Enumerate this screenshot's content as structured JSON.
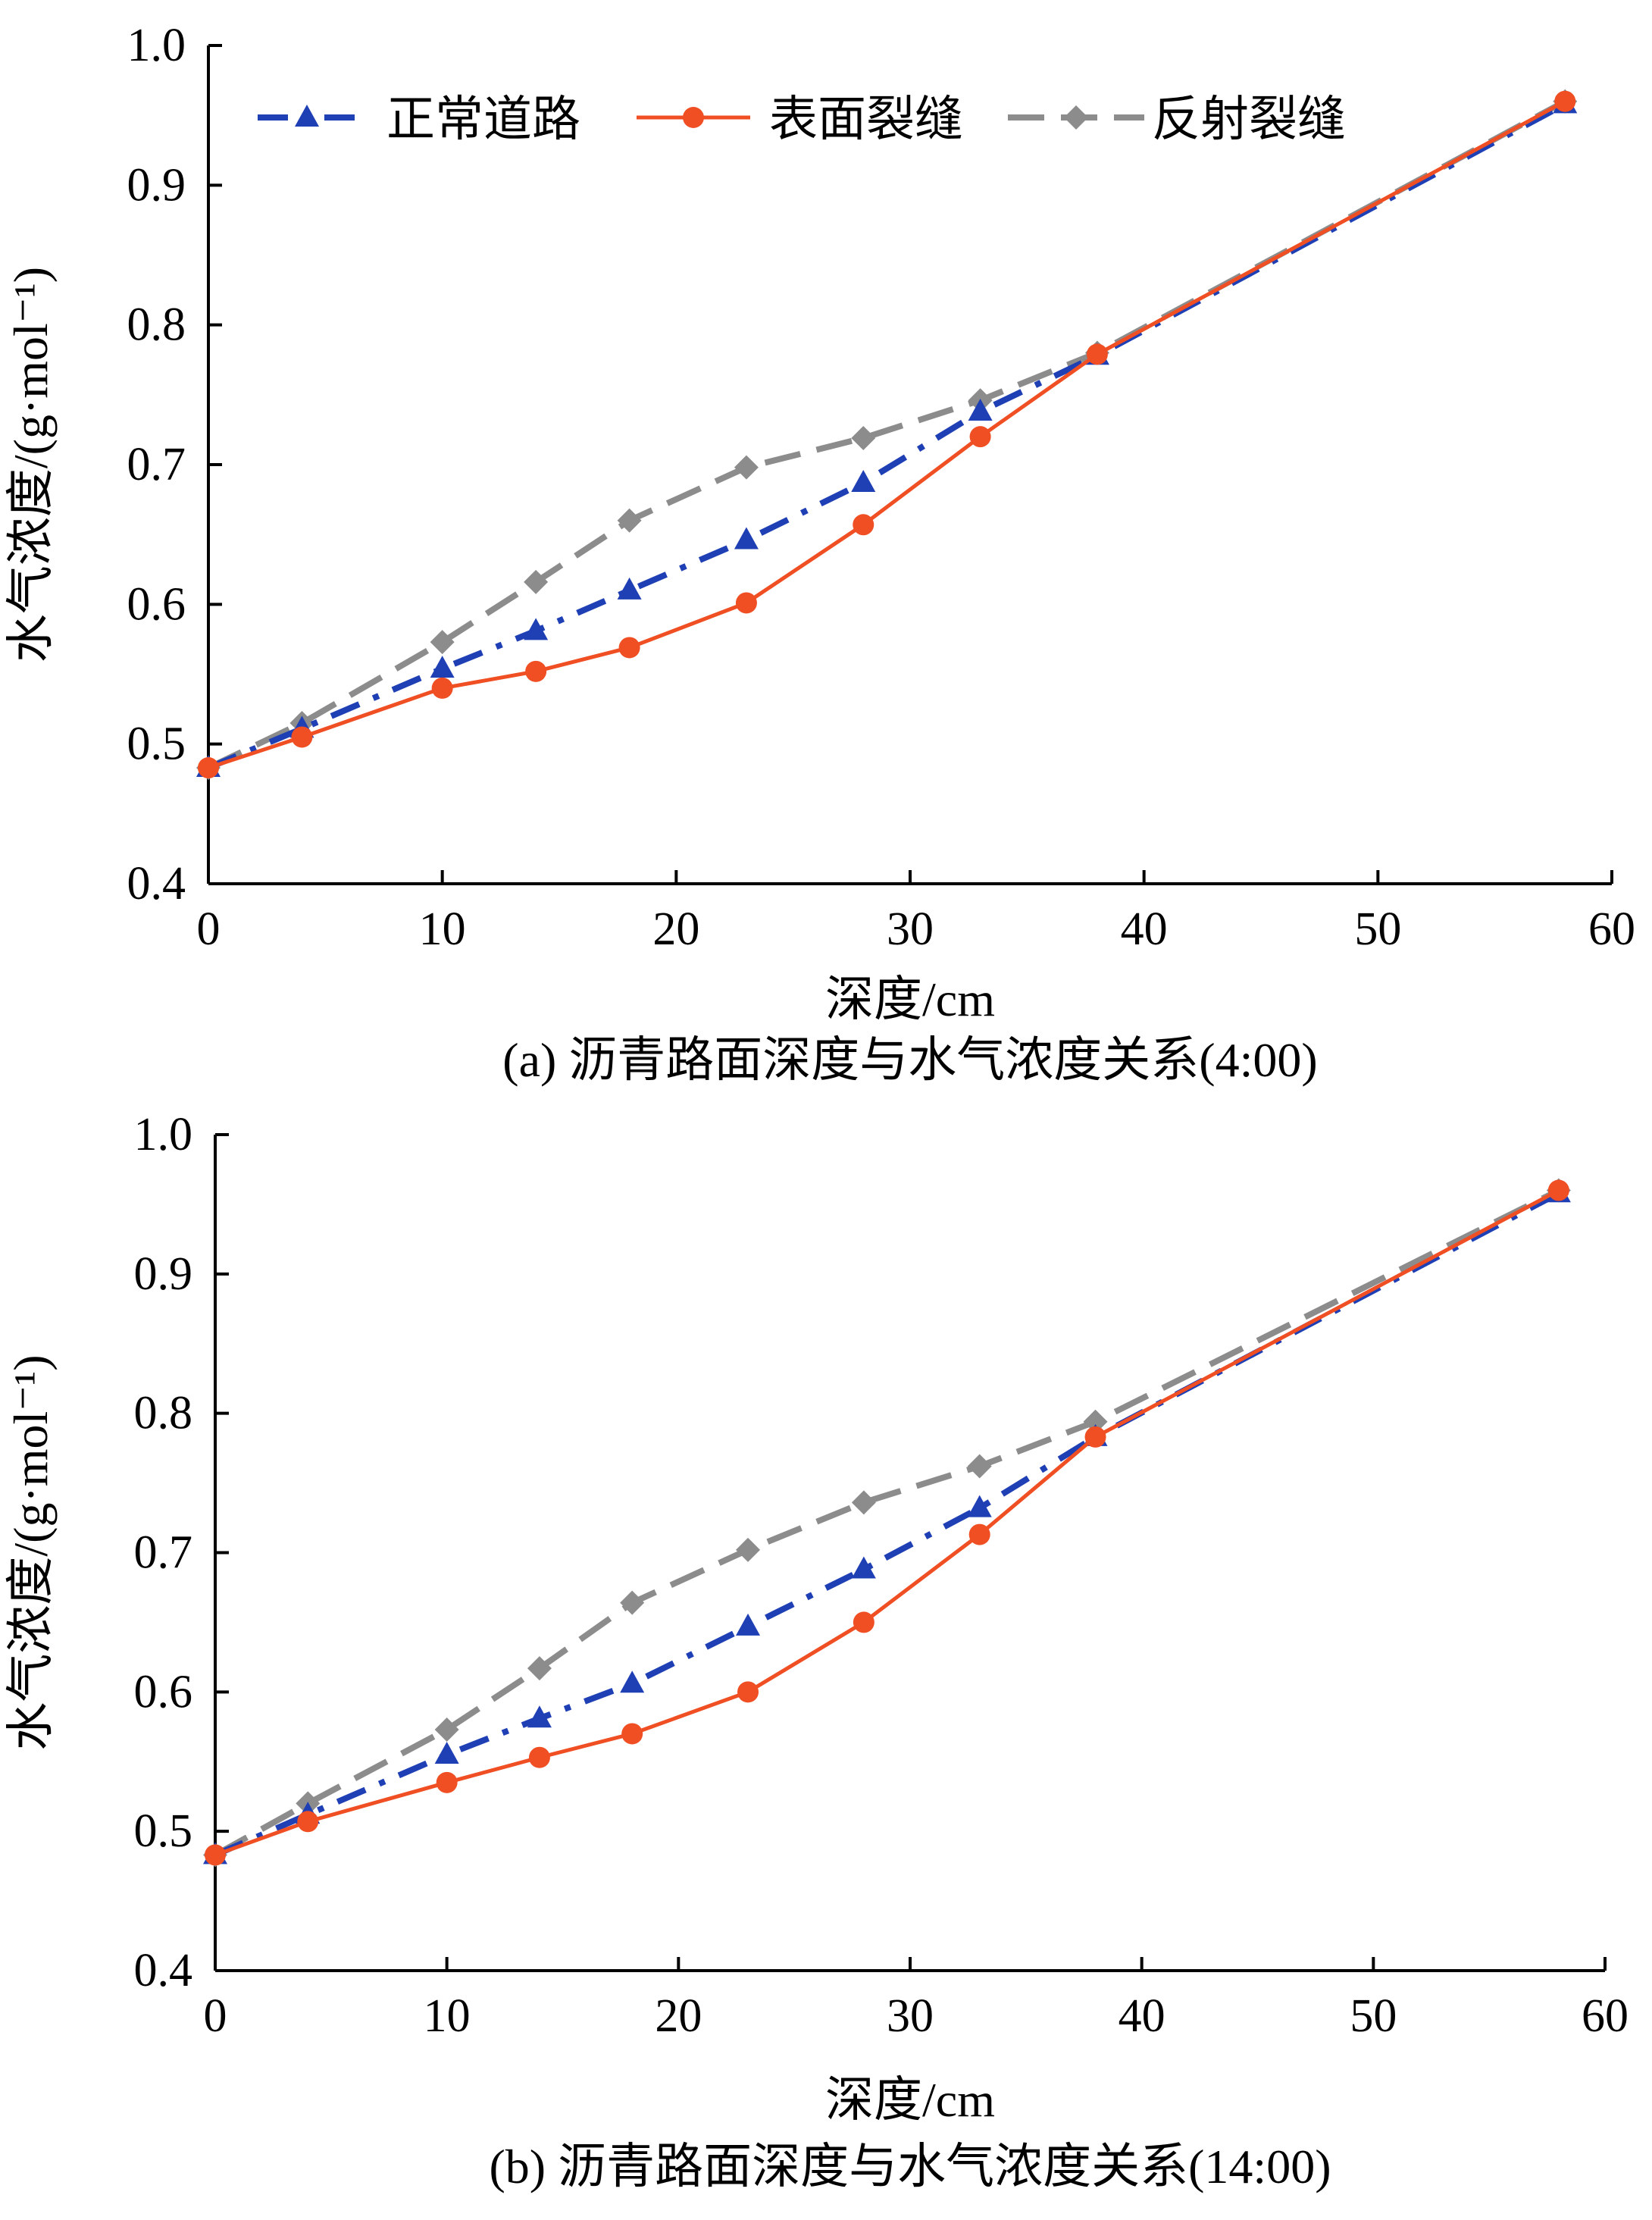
{
  "chart_data": [
    {
      "type": "line",
      "caption": "(a) 沥青路面深度与水气浓度关系(4:00)",
      "xlabel": "深度/cm",
      "ylabel": "水气浓度/(g·mol⁻¹)",
      "xlim": [
        0,
        60
      ],
      "ylim": [
        0.4,
        1.0
      ],
      "xticks": [
        "0",
        "10",
        "20",
        "30",
        "40",
        "50",
        "60"
      ],
      "yticks": [
        "0.4",
        "0.5",
        "0.6",
        "0.7",
        "0.8",
        "0.9",
        "1.0"
      ],
      "grid": false,
      "legend_position": "top-left",
      "x": [
        0,
        4,
        10,
        14,
        18,
        23,
        28,
        33,
        38,
        58
      ],
      "series": [
        {
          "name": "正常道路",
          "color": "#1f3fb4",
          "marker": "triangle",
          "dash": "dash-dot",
          "values": [
            0.483,
            0.511,
            0.554,
            0.581,
            0.61,
            0.646,
            0.687,
            0.738,
            0.778,
            0.958
          ]
        },
        {
          "name": "表面裂缝",
          "color": "#f04e23",
          "marker": "circle",
          "dash": "solid",
          "values": [
            0.483,
            0.505,
            0.54,
            0.552,
            0.569,
            0.601,
            0.657,
            0.72,
            0.779,
            0.96
          ]
        },
        {
          "name": "反射裂缝",
          "color": "#8c8c8c",
          "marker": "diamond",
          "dash": "dash",
          "values": [
            0.483,
            0.515,
            0.573,
            0.616,
            0.66,
            0.698,
            0.719,
            0.746,
            0.78,
            0.96
          ]
        }
      ]
    },
    {
      "type": "line",
      "caption": "(b) 沥青路面深度与水气浓度关系(14:00)",
      "xlabel": "深度/cm",
      "ylabel": "水气浓度/(g·mol⁻¹)",
      "xlim": [
        0,
        60
      ],
      "ylim": [
        0.4,
        1.0
      ],
      "xticks": [
        "0",
        "10",
        "20",
        "30",
        "40",
        "50",
        "60"
      ],
      "yticks": [
        "0.4",
        "0.5",
        "0.6",
        "0.7",
        "0.8",
        "0.9",
        "1.0"
      ],
      "grid": false,
      "x": [
        0,
        4,
        10,
        14,
        18,
        23,
        28,
        33,
        38,
        58
      ],
      "series": [
        {
          "name": "正常道路",
          "color": "#1f3fb4",
          "marker": "triangle",
          "dash": "dash-dot",
          "values": [
            0.483,
            0.512,
            0.555,
            0.581,
            0.606,
            0.647,
            0.688,
            0.732,
            0.783,
            0.958
          ]
        },
        {
          "name": "表面裂缝",
          "color": "#f04e23",
          "marker": "circle",
          "dash": "solid",
          "values": [
            0.483,
            0.507,
            0.535,
            0.553,
            0.57,
            0.6,
            0.65,
            0.713,
            0.783,
            0.96
          ]
        },
        {
          "name": "反射裂缝",
          "color": "#8c8c8c",
          "marker": "diamond",
          "dash": "dash",
          "values": [
            0.483,
            0.52,
            0.573,
            0.617,
            0.664,
            0.702,
            0.736,
            0.762,
            0.794,
            0.96
          ]
        }
      ]
    }
  ]
}
